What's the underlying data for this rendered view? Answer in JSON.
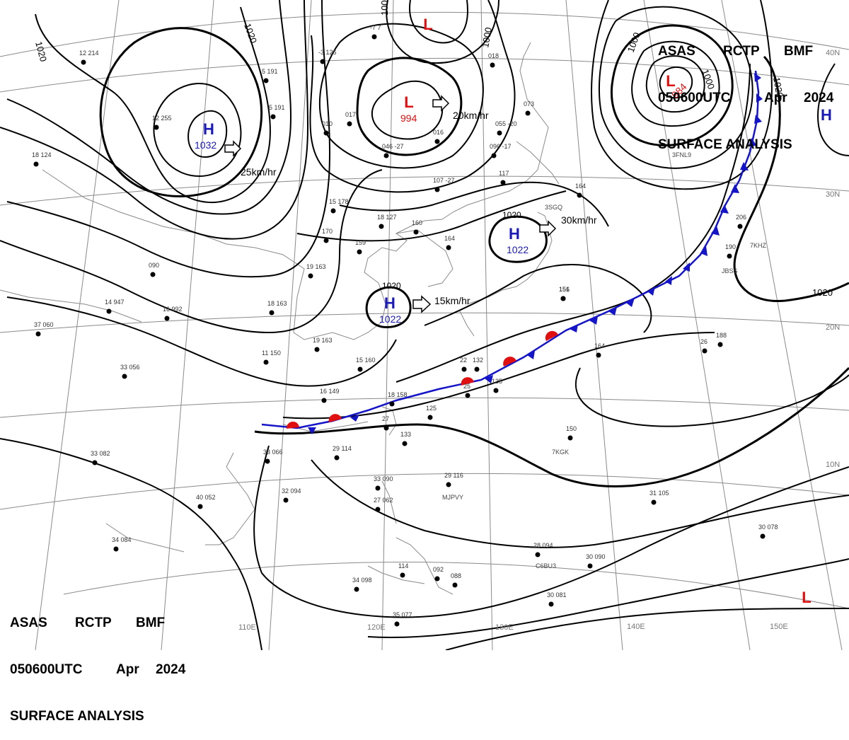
{
  "header_top": {
    "line1": [
      "ASAS",
      "RCTP",
      "BMF"
    ],
    "line2": [
      "050600UTC",
      "Apr",
      "2024"
    ],
    "line3": "SURFACE ANALYSIS"
  },
  "header_bottom": {
    "line1": [
      "ASAS",
      "RCTP",
      "BMF"
    ],
    "line2": [
      "050600UTC",
      "Apr",
      "2024"
    ],
    "line3": "SURFACE ANALYSIS"
  },
  "longitude_labels": [
    "110E",
    "120E",
    "130E",
    "140E",
    "150E"
  ],
  "latitude_labels": [
    "10N",
    "20N",
    "30N",
    "40N"
  ],
  "pressure_centers": [
    {
      "type": "H",
      "value": "1032",
      "color": "#1a1ab8",
      "motion": "25km/hr"
    },
    {
      "type": "L",
      "value": "994",
      "color": "#e01010",
      "motion": "20km/hr"
    },
    {
      "type": "L",
      "value": "",
      "color": "#e01010",
      "motion": ""
    },
    {
      "type": "L",
      "value": "984",
      "color": "#e01010",
      "motion": ""
    },
    {
      "type": "H",
      "value": "1022",
      "color": "#1a1ab8",
      "motion": "30km/hr",
      "label": "1020"
    },
    {
      "type": "H",
      "value": "1022",
      "color": "#1a1ab8",
      "motion": "15km/hr",
      "label": "1020"
    },
    {
      "type": "H",
      "value": "",
      "color": "#1a1ab8",
      "motion": ""
    },
    {
      "type": "L",
      "value": "",
      "color": "#e01010",
      "motion": ""
    }
  ],
  "isobar_labels": [
    "1020",
    "1020",
    "1000",
    "1000",
    "1000",
    "1000",
    "1020",
    "1020"
  ],
  "station_plots": [
    "12 214",
    "12 255",
    "18 124",
    "5 191",
    "-3 126",
    "-7 7",
    "5 191",
    "017",
    "010",
    "046 -27",
    "016",
    "073",
    "018",
    "055 -20",
    "096 -17",
    "107 -27",
    "117",
    "151",
    "164",
    "206",
    "190",
    "15 178",
    "18 127",
    "160",
    "170",
    "159",
    "164",
    "19 163",
    "18 163",
    "16 992",
    "14 947",
    "090",
    "37 060",
    "33 056",
    "19 163",
    "15 160",
    "11 150",
    "16 149",
    "18 158",
    "27",
    "133",
    "125",
    "132",
    "135",
    "25",
    "156",
    "188",
    "164",
    "150",
    "29 114",
    "33 090",
    "27 062",
    "29 116",
    "33 066",
    "32 094",
    "40 052",
    "34 084",
    "33 082",
    "34 098",
    "35 077",
    "114",
    "092",
    "088",
    "28 094",
    "30 090",
    "30 081",
    "31 105",
    "30 078",
    "26",
    "22"
  ],
  "station_ids": [
    "7KGK",
    "MJPVY",
    "C6BU3",
    "3SGQ",
    "3FNL9",
    "JBSS",
    "7KHZ"
  ],
  "colors": {
    "front_cold": "#1414c8",
    "front_warm": "#e01010",
    "isobar": "#000000",
    "grid": "#8a8a8a",
    "coast": "#8a8a8a"
  }
}
